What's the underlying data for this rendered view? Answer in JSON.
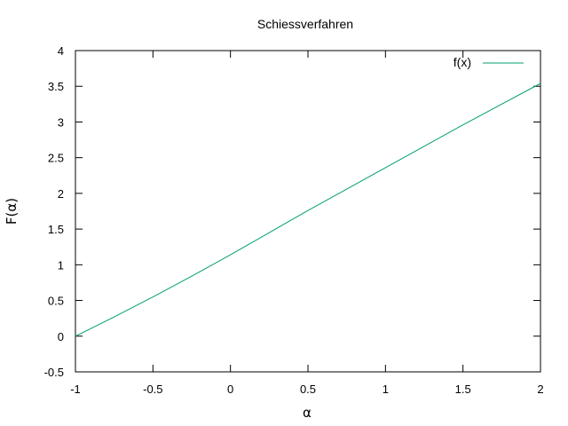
{
  "chart_data": {
    "type": "line",
    "title": "Schiessverfahren",
    "xlabel": "α",
    "ylabel": "F(α)",
    "xlim": [
      -1,
      2
    ],
    "ylim": [
      -0.5,
      4
    ],
    "xticks": [
      "-1",
      "-0.5",
      "0",
      "0.5",
      "1",
      "1.5",
      "2"
    ],
    "yticks": [
      "-0.5",
      "0",
      "0.5",
      "1",
      "1.5",
      "2",
      "2.5",
      "3",
      "3.5",
      "4"
    ],
    "grid": false,
    "legend_position": "top-right",
    "series": [
      {
        "name": "f(x)",
        "color": "#009e73",
        "x": [
          -1,
          -0.75,
          -0.5,
          -0.25,
          0,
          0.25,
          0.5,
          0.75,
          1,
          1.25,
          1.5,
          1.75,
          2
        ],
        "y": [
          0.0,
          0.27,
          0.55,
          0.84,
          1.14,
          1.45,
          1.76,
          2.06,
          2.36,
          2.66,
          2.96,
          3.25,
          3.54
        ]
      }
    ]
  }
}
